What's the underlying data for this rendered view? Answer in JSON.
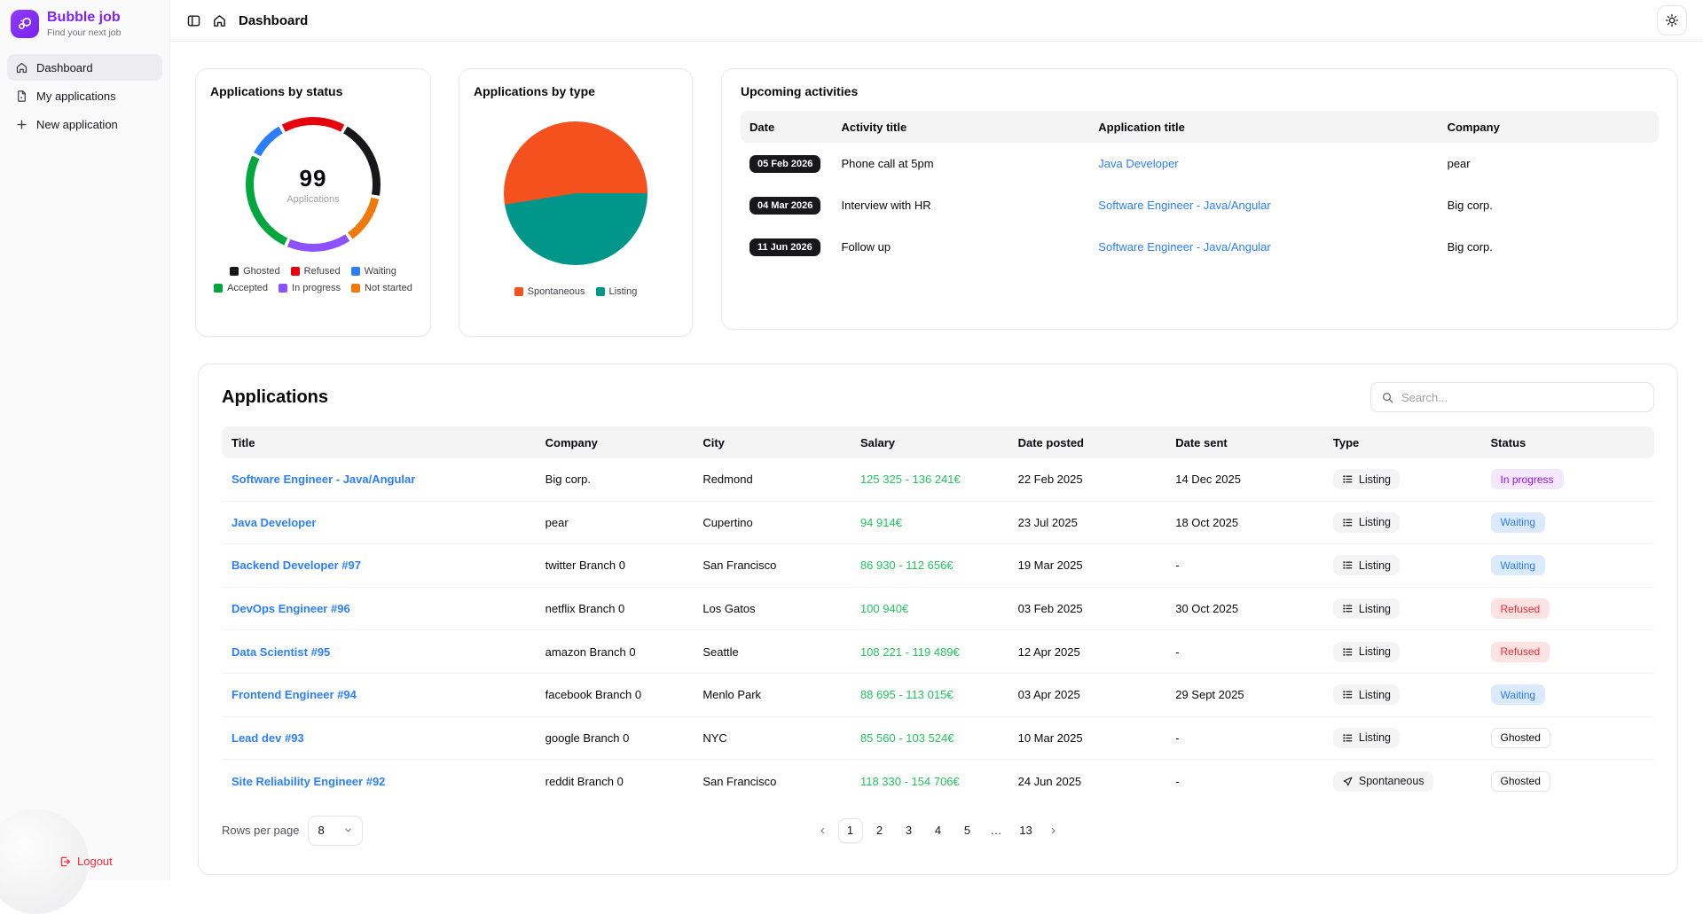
{
  "app": {
    "name": "Bubble job",
    "tagline": "Find your next job"
  },
  "header": {
    "title": "Dashboard"
  },
  "sidebar": {
    "items": [
      {
        "label": "Dashboard",
        "icon": "home-icon",
        "active": true
      },
      {
        "label": "My applications",
        "icon": "file-icon",
        "active": false
      },
      {
        "label": "New application",
        "icon": "plus-icon",
        "active": false
      }
    ],
    "logout_label": "Logout"
  },
  "chart_data": [
    {
      "type": "pie",
      "variant": "donut",
      "title": "Applications by status",
      "center_value": "99",
      "center_label": "Applications",
      "segments": [
        {
          "label": "Ghosted",
          "value": 20,
          "color": "#18181b"
        },
        {
          "label": "Refused",
          "value": 16,
          "color": "#e7000b"
        },
        {
          "label": "Waiting",
          "value": 9,
          "color": "#2b7fff"
        },
        {
          "label": "Accepted",
          "value": 26,
          "color": "#00a63e"
        },
        {
          "label": "In progress",
          "value": 16,
          "color": "#8e51ff"
        },
        {
          "label": "Not started",
          "value": 12,
          "color": "#f0790b"
        }
      ],
      "draw_order": [
        "Refused",
        "Ghosted",
        "Not started",
        "In progress",
        "Accepted",
        "Waiting"
      ],
      "legend_position": "bottom"
    },
    {
      "type": "pie",
      "variant": "pie",
      "title": "Applications by type",
      "segments": [
        {
          "label": "Spontaneous",
          "value": 52,
          "color": "#f4511e"
        },
        {
          "label": "Listing",
          "value": 47,
          "color": "#009689"
        }
      ],
      "draw_order": [
        "Listing",
        "Spontaneous"
      ],
      "start_angle_deg": 90,
      "legend_position": "bottom"
    }
  ],
  "activities": {
    "title": "Upcoming activities",
    "columns": [
      "Date",
      "Activity title",
      "Application title",
      "Company"
    ],
    "rows": [
      {
        "date": "05 Feb 2026",
        "activity": "Phone call at 5pm",
        "application": "Java Developer",
        "company": "pear"
      },
      {
        "date": "04 Mar 2026",
        "activity": "Interview with HR",
        "application": "Software Engineer - Java/Angular",
        "company": "Big corp."
      },
      {
        "date": "11 Jun 2026",
        "activity": "Follow up",
        "application": "Software Engineer - Java/Angular",
        "company": "Big corp."
      }
    ]
  },
  "applications": {
    "title": "Applications",
    "search_placeholder": "Search...",
    "columns": [
      "Title",
      "Company",
      "City",
      "Salary",
      "Date posted",
      "Date sent",
      "Type",
      "Status"
    ],
    "rows": [
      {
        "title": "Software Engineer - Java/Angular",
        "company": "Big corp.",
        "city": "Redmond",
        "salary": "125 325 - 136 241€",
        "date_posted": "22 Feb 2025",
        "date_sent": "14 Dec 2025",
        "type": "Listing",
        "status": "In progress"
      },
      {
        "title": "Java Developer",
        "company": "pear",
        "city": "Cupertino",
        "salary": "94 914€",
        "date_posted": "23 Jul 2025",
        "date_sent": "18 Oct 2025",
        "type": "Listing",
        "status": "Waiting"
      },
      {
        "title": "Backend Developer #97",
        "company": "twitter Branch 0",
        "city": "San Francisco",
        "salary": "86 930 - 112 656€",
        "date_posted": "19 Mar 2025",
        "date_sent": "-",
        "type": "Listing",
        "status": "Waiting"
      },
      {
        "title": "DevOps Engineer #96",
        "company": "netflix Branch 0",
        "city": "Los Gatos",
        "salary": "100 940€",
        "date_posted": "03 Feb 2025",
        "date_sent": "30 Oct 2025",
        "type": "Listing",
        "status": "Refused"
      },
      {
        "title": "Data Scientist #95",
        "company": "amazon Branch 0",
        "city": "Seattle",
        "salary": "108 221 - 119 489€",
        "date_posted": "12 Apr 2025",
        "date_sent": "-",
        "type": "Listing",
        "status": "Refused"
      },
      {
        "title": "Frontend Engineer #94",
        "company": "facebook Branch 0",
        "city": "Menlo Park",
        "salary": "88 695 - 113 015€",
        "date_posted": "03 Apr 2025",
        "date_sent": "29 Sept 2025",
        "type": "Listing",
        "status": "Waiting"
      },
      {
        "title": "Lead dev #93",
        "company": "google Branch 0",
        "city": "NYC",
        "salary": "85 560 - 103 524€",
        "date_posted": "10 Mar 2025",
        "date_sent": "-",
        "type": "Listing",
        "status": "Ghosted"
      },
      {
        "title": "Site Reliability Engineer #92",
        "company": "reddit Branch 0",
        "city": "San Francisco",
        "salary": "118 330 - 154 706€",
        "date_posted": "24 Jun 2025",
        "date_sent": "-",
        "type": "Spontaneous",
        "status": "Ghosted"
      }
    ],
    "pagination": {
      "rows_per_page_label": "Rows per page",
      "rows_per_page_value": "8",
      "pages": [
        "1",
        "2",
        "3",
        "4",
        "5",
        "...",
        "13"
      ],
      "current_page": "1"
    }
  },
  "colors": {
    "brand": "#7f22fe",
    "link": "#2b7fff",
    "salary": "#21c45d",
    "logout": "#fb2c36",
    "status_styles": {
      "In progress": {
        "bg": "#f3e8ff",
        "fg": "#9810fa"
      },
      "Waiting": {
        "bg": "#dbeafe",
        "fg": "#2b7fff"
      },
      "Refused": {
        "bg": "#ffe2e2",
        "fg": "#fb2c36"
      },
      "Ghosted": {
        "bg": "#ffffff",
        "fg": "#09090b",
        "border": "#e4e4e7"
      }
    }
  }
}
